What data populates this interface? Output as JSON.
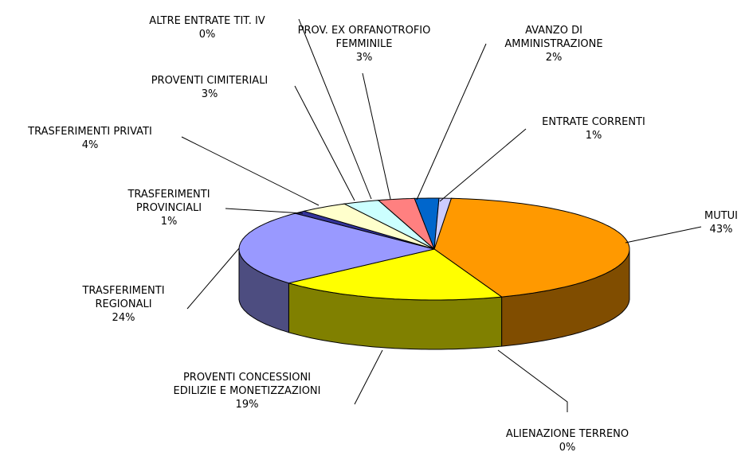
{
  "chart_data": {
    "type": "pie",
    "style": "3d",
    "categories": [
      "MUTUI",
      "ALIENAZIONE TERRENO",
      "PROVENTI CONCESSIONI EDILIZIE E MONETIZZAZIONI",
      "TRASFERIMENTI REGIONALI",
      "TRASFERIMENTI PROVINCIALI",
      "TRASFERIMENTI PRIVATI",
      "PROVENTI CIMITERIALI",
      "ALTRE ENTRATE TIT. IV",
      "PROV. EX ORFANOTROFIO FEMMINILE",
      "AVANZO DI AMMINISTRAZIONE",
      "ENTRATE CORRENTI"
    ],
    "values": [
      43,
      0,
      19,
      24,
      1,
      4,
      3,
      0,
      3,
      2,
      1
    ],
    "value_labels": [
      "43%",
      "0%",
      "19%",
      "24%",
      "1%",
      "4%",
      "3%",
      "0%",
      "3%",
      "2%",
      "1%"
    ],
    "colors": [
      "#ff9900",
      "#993366",
      "#ffff00",
      "#9999ff",
      "#333399",
      "#ffffcc",
      "#ccffff",
      "#660066",
      "#ff8080",
      "#0066cc",
      "#ccccff"
    ]
  }
}
